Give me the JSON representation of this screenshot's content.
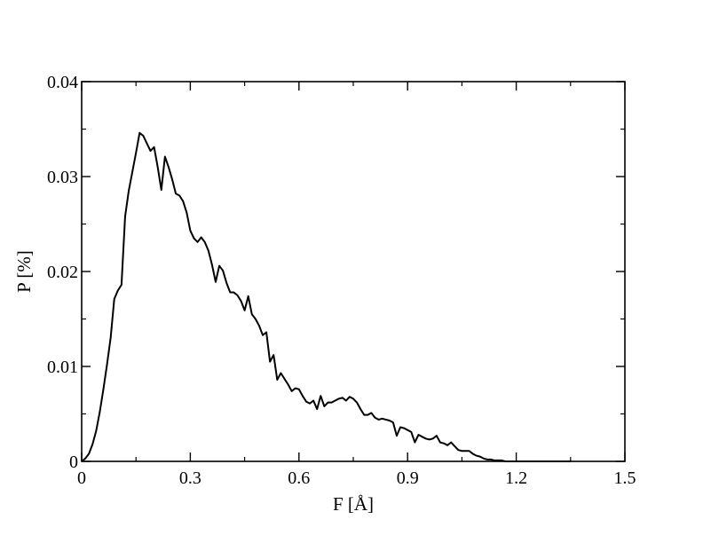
{
  "chart_data": {
    "type": "line",
    "title": "",
    "xlabel": "F [Å]",
    "ylabel": "P [%]",
    "xlim": [
      0,
      1.5
    ],
    "ylim": [
      0,
      0.04
    ],
    "x_ticks": [
      {
        "value": 0,
        "label": "0"
      },
      {
        "value": 0.3,
        "label": "0.3"
      },
      {
        "value": 0.6,
        "label": "0.6"
      },
      {
        "value": 0.9,
        "label": "0.9"
      },
      {
        "value": 1.2,
        "label": "1.2"
      },
      {
        "value": 1.5,
        "label": "1.5"
      }
    ],
    "y_ticks": [
      {
        "value": 0,
        "label": "0"
      },
      {
        "value": 0.01,
        "label": "0.01"
      },
      {
        "value": 0.02,
        "label": "0.02"
      },
      {
        "value": 0.03,
        "label": "0.03"
      },
      {
        "value": 0.04,
        "label": "0.04"
      }
    ],
    "x_minor_step": 0.15,
    "y_minor_step": 0.005,
    "grid": false,
    "line_color": "#000000",
    "series": [
      {
        "x": [
          0.0,
          0.01,
          0.02,
          0.03,
          0.04,
          0.05,
          0.06,
          0.07,
          0.08,
          0.09,
          0.1,
          0.11,
          0.12,
          0.13,
          0.14,
          0.15,
          0.16,
          0.17,
          0.18,
          0.19,
          0.2,
          0.21,
          0.22,
          0.23,
          0.24,
          0.25,
          0.26,
          0.27,
          0.28,
          0.29,
          0.3,
          0.31,
          0.32,
          0.33,
          0.34,
          0.35,
          0.36,
          0.37,
          0.38,
          0.39,
          0.4,
          0.41,
          0.42,
          0.43,
          0.44,
          0.45,
          0.46,
          0.47,
          0.48,
          0.49,
          0.5,
          0.51,
          0.52,
          0.53,
          0.54,
          0.55,
          0.56,
          0.57,
          0.58,
          0.59,
          0.6,
          0.61,
          0.62,
          0.63,
          0.64,
          0.65,
          0.66,
          0.67,
          0.68,
          0.69,
          0.7,
          0.71,
          0.72,
          0.73,
          0.74,
          0.75,
          0.76,
          0.77,
          0.78,
          0.79,
          0.8,
          0.81,
          0.82,
          0.83,
          0.84,
          0.85,
          0.86,
          0.87,
          0.88,
          0.89,
          0.9,
          0.91,
          0.92,
          0.93,
          0.94,
          0.95,
          0.96,
          0.97,
          0.98,
          0.99,
          1.0,
          1.01,
          1.02,
          1.03,
          1.04,
          1.05,
          1.06,
          1.07,
          1.08,
          1.09,
          1.1,
          1.11,
          1.12,
          1.13,
          1.14,
          1.15,
          1.16,
          1.17,
          1.18,
          1.19,
          1.2,
          1.21,
          1.22,
          1.23,
          1.24,
          1.25,
          1.26,
          1.27,
          1.28,
          1.29,
          1.3,
          1.31,
          1.32,
          1.33,
          1.34,
          1.35
        ],
        "y": [
          0.0,
          0.0003,
          0.0008,
          0.0018,
          0.0032,
          0.0052,
          0.0076,
          0.0102,
          0.013,
          0.0171,
          0.018,
          0.0186,
          0.0258,
          0.0285,
          0.0305,
          0.0325,
          0.0346,
          0.0343,
          0.0335,
          0.0327,
          0.0331,
          0.031,
          0.0286,
          0.0321,
          0.031,
          0.0297,
          0.0282,
          0.028,
          0.0274,
          0.0262,
          0.0243,
          0.0235,
          0.0231,
          0.0236,
          0.0231,
          0.0222,
          0.0207,
          0.0189,
          0.0206,
          0.0201,
          0.0188,
          0.0178,
          0.0178,
          0.0175,
          0.0169,
          0.0159,
          0.0174,
          0.0155,
          0.015,
          0.0143,
          0.0133,
          0.0136,
          0.0105,
          0.0112,
          0.0086,
          0.0093,
          0.0087,
          0.0081,
          0.0074,
          0.0077,
          0.0076,
          0.0069,
          0.0063,
          0.0061,
          0.0064,
          0.0055,
          0.0069,
          0.0058,
          0.0062,
          0.0062,
          0.0064,
          0.0066,
          0.0067,
          0.0064,
          0.0068,
          0.0066,
          0.0062,
          0.0055,
          0.0049,
          0.0049,
          0.0051,
          0.0046,
          0.0044,
          0.0045,
          0.0044,
          0.0043,
          0.0041,
          0.0027,
          0.0036,
          0.0035,
          0.0033,
          0.0031,
          0.002,
          0.0028,
          0.0026,
          0.0024,
          0.0023,
          0.0024,
          0.0027,
          0.002,
          0.0019,
          0.0017,
          0.002,
          0.0016,
          0.0012,
          0.0011,
          0.0011,
          0.0011,
          0.0008,
          0.0006,
          0.0005,
          0.0003,
          0.0002,
          0.0002,
          0.0001,
          0.0001,
          0.0001,
          0.0,
          0.0,
          0.0,
          0.0,
          0.0,
          0.0,
          0.0,
          0.0,
          0.0,
          0.0,
          0.0,
          0.0,
          0.0,
          0.0,
          0.0,
          0.0,
          0.0,
          0.0,
          0.0
        ]
      }
    ]
  }
}
